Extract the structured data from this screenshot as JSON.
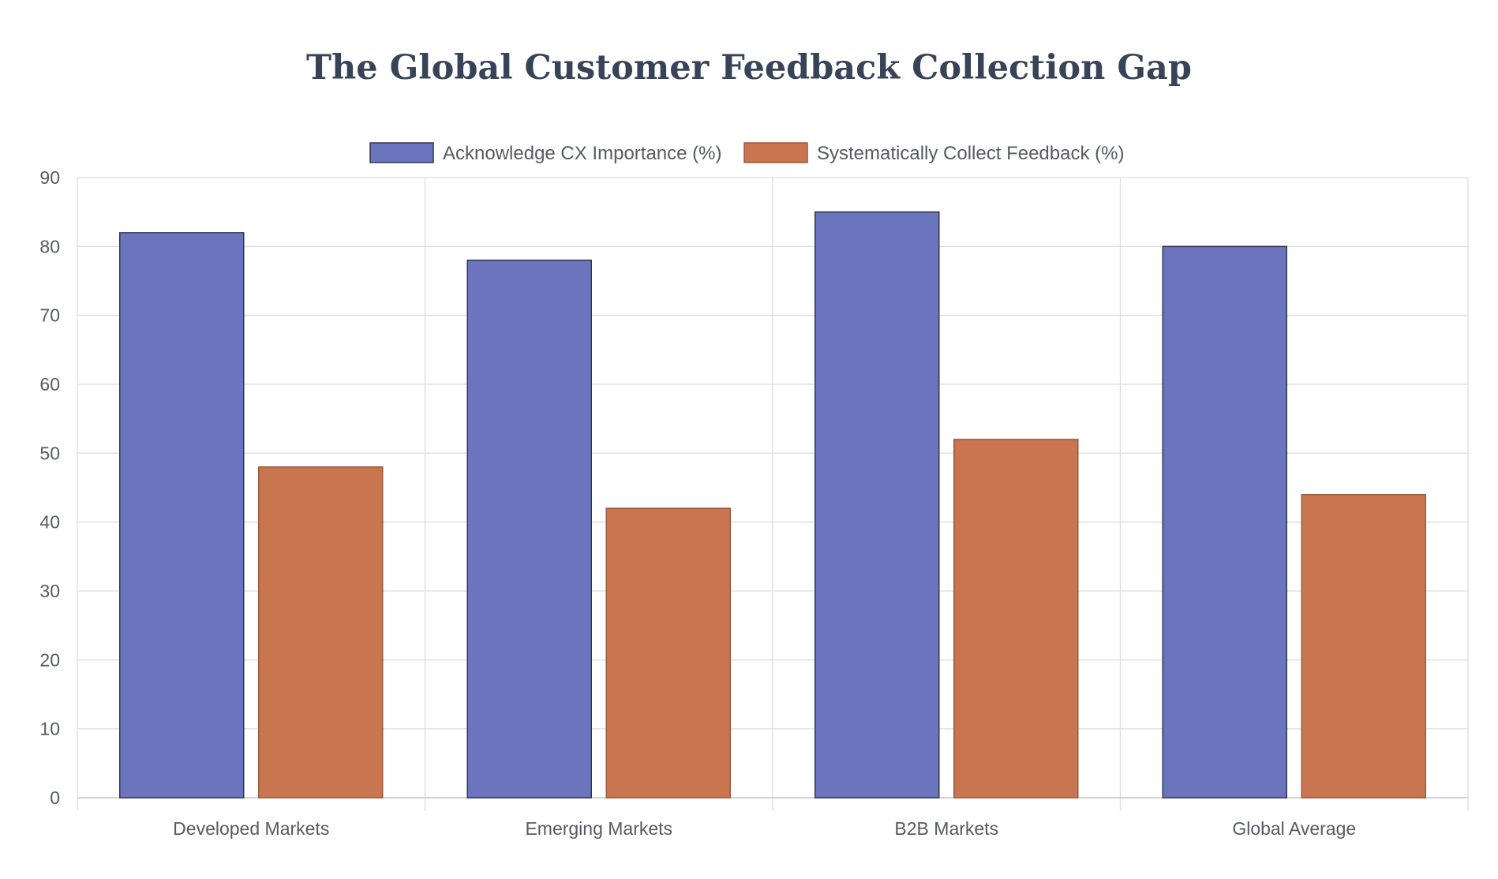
{
  "chart_data": {
    "type": "bar",
    "title": "The Global Customer Feedback Collection Gap",
    "categories": [
      "Developed Markets",
      "Emerging Markets",
      "B2B Markets",
      "Global Average"
    ],
    "series": [
      {
        "name": "Acknowledge CX Importance (%)",
        "values": [
          82,
          78,
          85,
          80
        ],
        "color": "#6b75bd",
        "border_color": "#2f3550"
      },
      {
        "name": "Systematically Collect Feedback (%)",
        "values": [
          48,
          42,
          52,
          44
        ],
        "color": "#c97650",
        "border_color": "#9a5a3e"
      }
    ],
    "xlabel": "",
    "ylabel": "",
    "ylim": [
      0,
      90
    ],
    "yticks": [
      "0",
      "10",
      "20",
      "30",
      "40",
      "50",
      "60",
      "70",
      "80",
      "90"
    ],
    "grid": true,
    "legend_position": "top-center"
  }
}
